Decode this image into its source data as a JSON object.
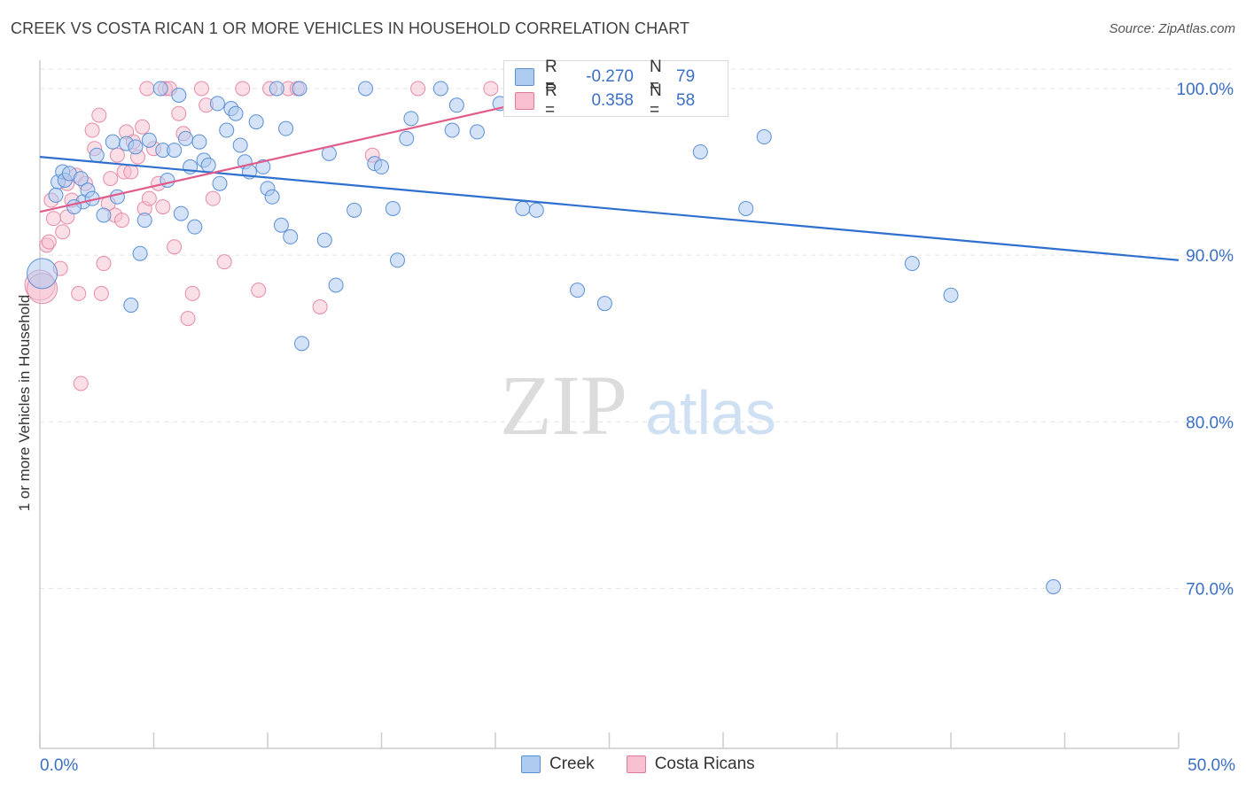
{
  "title": "CREEK VS COSTA RICAN 1 OR MORE VEHICLES IN HOUSEHOLD CORRELATION CHART",
  "source": "Source: ZipAtlas.com",
  "watermark": {
    "zip": "ZIP",
    "atlas": "atlas"
  },
  "legend": {
    "r_label": "R =",
    "n_label": "N =",
    "series": [
      {
        "name": "Creek",
        "r": "-0.270",
        "n": "79",
        "fill": "#aecbf0",
        "stroke": "#5a8fd6"
      },
      {
        "name": "Costa Ricans",
        "r": "0.358",
        "n": "58",
        "fill": "#f7bfd0",
        "stroke": "#e07a9b"
      }
    ]
  },
  "colors": {
    "creek_line": "#2f6fcf",
    "costa_line": "#e05b8a",
    "tick_label": "#3a6fc4",
    "grid": "#e3e3e3",
    "axis": "#cccccc"
  },
  "chart_data": {
    "type": "scatter",
    "title": "CREEK VS COSTA RICAN 1 OR MORE VEHICLES IN HOUSEHOLD CORRELATION CHART",
    "xlabel": "",
    "ylabel": "1 or more Vehicles in Household",
    "xlim": [
      0,
      50
    ],
    "ylim": [
      60.4,
      101.7
    ],
    "x_tick_labels": [
      "0.0%",
      "50.0%"
    ],
    "y_ticks": [
      70,
      80,
      90,
      100
    ],
    "y_tick_labels": [
      "70.0%",
      "80.0%",
      "90.0%",
      "100.0%"
    ],
    "grid": true,
    "legend_position": "top-center",
    "series": [
      {
        "name": "Creek",
        "trend": {
          "x": [
            0,
            50
          ],
          "y": [
            95.9,
            89.7
          ]
        },
        "points": [
          [
            0.1,
            88.9
          ],
          [
            0.8,
            94.4
          ],
          [
            0.7,
            93.6
          ],
          [
            1.0,
            95.0
          ],
          [
            1.1,
            94.5
          ],
          [
            1.3,
            94.9
          ],
          [
            1.8,
            94.6
          ],
          [
            1.9,
            93.2
          ],
          [
            2.1,
            93.9
          ],
          [
            2.3,
            93.4
          ],
          [
            2.5,
            96.0
          ],
          [
            3.2,
            96.8
          ],
          [
            3.4,
            93.5
          ],
          [
            3.8,
            96.7
          ],
          [
            4.0,
            87.0
          ],
          [
            4.2,
            96.5
          ],
          [
            4.4,
            90.1
          ],
          [
            4.6,
            92.1
          ],
          [
            4.8,
            96.9
          ],
          [
            5.3,
            100.0
          ],
          [
            5.4,
            96.3
          ],
          [
            5.6,
            94.5
          ],
          [
            5.9,
            96.3
          ],
          [
            6.1,
            99.6
          ],
          [
            6.2,
            92.5
          ],
          [
            6.4,
            97.0
          ],
          [
            6.6,
            95.3
          ],
          [
            6.8,
            91.7
          ],
          [
            7.0,
            96.8
          ],
          [
            7.2,
            95.7
          ],
          [
            7.4,
            95.4
          ],
          [
            7.8,
            99.1
          ],
          [
            7.9,
            94.3
          ],
          [
            8.2,
            97.5
          ],
          [
            8.4,
            98.8
          ],
          [
            8.6,
            98.5
          ],
          [
            8.8,
            96.6
          ],
          [
            9.0,
            95.6
          ],
          [
            9.2,
            95.0
          ],
          [
            9.5,
            98.0
          ],
          [
            9.8,
            95.3
          ],
          [
            10.0,
            94.0
          ],
          [
            10.4,
            100.0
          ],
          [
            10.2,
            93.5
          ],
          [
            10.8,
            97.6
          ],
          [
            10.6,
            91.8
          ],
          [
            11.0,
            91.1
          ],
          [
            11.4,
            100.0
          ],
          [
            11.5,
            84.7
          ],
          [
            12.5,
            90.9
          ],
          [
            12.7,
            96.1
          ],
          [
            13.0,
            88.2
          ],
          [
            13.8,
            92.7
          ],
          [
            14.3,
            100.0
          ],
          [
            14.7,
            95.5
          ],
          [
            15.0,
            95.3
          ],
          [
            15.5,
            92.8
          ],
          [
            15.7,
            89.7
          ],
          [
            16.1,
            97.0
          ],
          [
            16.3,
            98.2
          ],
          [
            17.6,
            100.0
          ],
          [
            18.1,
            97.5
          ],
          [
            18.3,
            99.0
          ],
          [
            19.2,
            97.4
          ],
          [
            20.2,
            99.1
          ],
          [
            21.2,
            92.8
          ],
          [
            21.8,
            92.7
          ],
          [
            22.4,
            100.0
          ],
          [
            23.6,
            87.9
          ],
          [
            23.8,
            99.2
          ],
          [
            24.8,
            87.1
          ],
          [
            29.0,
            96.2
          ],
          [
            31.0,
            92.8
          ],
          [
            31.8,
            97.1
          ],
          [
            38.3,
            89.5
          ],
          [
            40.0,
            87.6
          ],
          [
            44.5,
            70.1
          ],
          [
            2.8,
            92.4
          ],
          [
            1.5,
            92.9
          ]
        ]
      },
      {
        "name": "Costa Ricans",
        "trend": {
          "x": [
            0,
            24
          ],
          "y": [
            92.6,
            100.0
          ]
        },
        "points": [
          [
            0.0,
            88.2
          ],
          [
            0.3,
            90.6
          ],
          [
            0.4,
            90.8
          ],
          [
            0.6,
            92.2
          ],
          [
            0.5,
            93.3
          ],
          [
            0.9,
            89.2
          ],
          [
            1.0,
            91.4
          ],
          [
            1.2,
            94.3
          ],
          [
            1.2,
            92.3
          ],
          [
            1.4,
            93.3
          ],
          [
            1.6,
            94.8
          ],
          [
            1.7,
            87.7
          ],
          [
            1.8,
            82.3
          ],
          [
            2.0,
            94.3
          ],
          [
            2.3,
            97.5
          ],
          [
            2.4,
            96.4
          ],
          [
            2.6,
            98.4
          ],
          [
            2.7,
            87.7
          ],
          [
            2.8,
            89.5
          ],
          [
            3.0,
            93.1
          ],
          [
            3.1,
            94.6
          ],
          [
            3.3,
            92.4
          ],
          [
            3.4,
            96.0
          ],
          [
            3.6,
            92.1
          ],
          [
            3.7,
            95.0
          ],
          [
            3.8,
            97.4
          ],
          [
            4.0,
            95.0
          ],
          [
            4.1,
            96.8
          ],
          [
            4.3,
            95.9
          ],
          [
            4.5,
            97.7
          ],
          [
            4.6,
            92.8
          ],
          [
            4.7,
            100.0
          ],
          [
            4.8,
            93.4
          ],
          [
            5.0,
            96.4
          ],
          [
            5.2,
            94.3
          ],
          [
            5.4,
            92.9
          ],
          [
            5.5,
            100.0
          ],
          [
            5.7,
            100.0
          ],
          [
            5.9,
            90.5
          ],
          [
            6.1,
            98.5
          ],
          [
            6.3,
            97.3
          ],
          [
            6.5,
            86.2
          ],
          [
            6.7,
            87.7
          ],
          [
            7.1,
            100.0
          ],
          [
            7.3,
            99.0
          ],
          [
            7.6,
            93.4
          ],
          [
            8.1,
            89.6
          ],
          [
            8.9,
            100.0
          ],
          [
            9.6,
            87.9
          ],
          [
            10.1,
            100.0
          ],
          [
            10.9,
            100.0
          ],
          [
            11.3,
            100.0
          ],
          [
            12.3,
            86.9
          ],
          [
            14.6,
            96.0
          ],
          [
            16.6,
            100.0
          ],
          [
            19.8,
            100.0
          ],
          [
            26.0,
            100.0
          ],
          [
            0.1,
            88.0
          ]
        ]
      }
    ]
  }
}
